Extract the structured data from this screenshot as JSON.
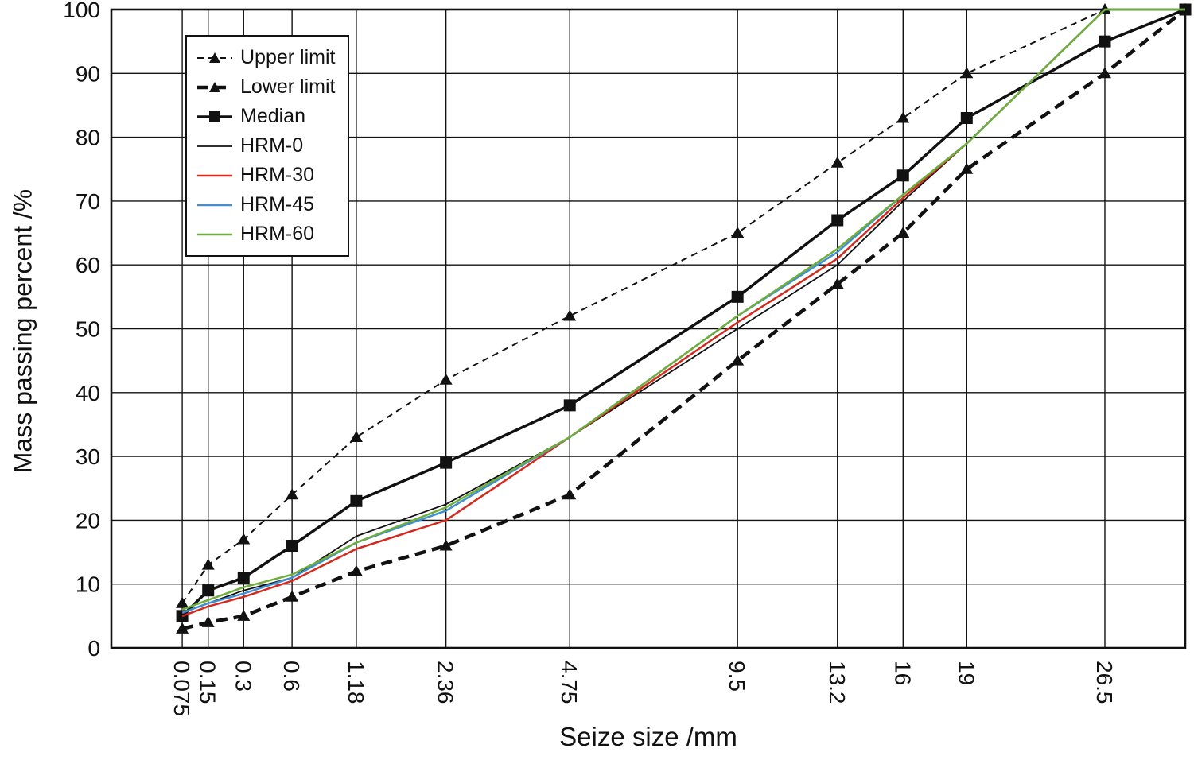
{
  "chart_data": {
    "type": "line",
    "title": "",
    "xlabel": "Seize size /mm",
    "ylabel": "Mass passing percent /%",
    "x_scale": "power-0.45",
    "grid": true,
    "legend_position": "top-left",
    "ylim": [
      0,
      100
    ],
    "y_ticks": [
      0,
      10,
      20,
      30,
      40,
      50,
      60,
      70,
      80,
      90,
      100
    ],
    "x_sizes": [
      0.075,
      0.15,
      0.3,
      0.6,
      1.18,
      2.36,
      4.75,
      9.5,
      13.2,
      16,
      19,
      26.5,
      31.5
    ],
    "x_tick_labels": [
      "0.075",
      "0.15",
      "0.3",
      "0.6",
      "1.18",
      "2.36",
      "4.75",
      "9.5",
      "13.2",
      "16",
      "19",
      "26.5",
      ""
    ],
    "series": [
      {
        "name": "Upper limit",
        "color": "#111111",
        "width": 2,
        "dash": "8,6",
        "marker": "triangle",
        "values": [
          7,
          13,
          17,
          24,
          33,
          42,
          52,
          65,
          76,
          83,
          90,
          100,
          100
        ]
      },
      {
        "name": "Lower limit",
        "color": "#111111",
        "width": 4.5,
        "dash": "14,8",
        "marker": "triangle",
        "values": [
          3,
          4,
          5,
          8,
          12,
          16,
          24,
          45,
          57,
          65,
          75,
          90,
          100
        ]
      },
      {
        "name": "Median",
        "color": "#111111",
        "width": 3.5,
        "dash": "",
        "marker": "square",
        "values": [
          5,
          9,
          11,
          16,
          23,
          29,
          38,
          55,
          67,
          74,
          83,
          95,
          100
        ]
      },
      {
        "name": "HRM-0",
        "color": "#111111",
        "width": 1.8,
        "dash": "",
        "marker": "none",
        "values": [
          5.5,
          7,
          9,
          11,
          17.5,
          22.5,
          33,
          50,
          60,
          70,
          79,
          100,
          100
        ]
      },
      {
        "name": "HRM-30",
        "color": "#d42a1d",
        "width": 2.5,
        "dash": "",
        "marker": "none",
        "values": [
          5,
          6.5,
          8,
          10.5,
          15.5,
          20,
          33,
          51,
          61,
          70.5,
          79,
          100,
          100
        ]
      },
      {
        "name": "HRM-45",
        "color": "#3f8fd2",
        "width": 2.5,
        "dash": "",
        "marker": "none",
        "values": [
          5.5,
          7,
          8.5,
          11,
          16.5,
          21.5,
          33,
          52,
          62,
          71,
          79,
          100,
          100
        ]
      },
      {
        "name": "HRM-60",
        "color": "#6fae3a",
        "width": 2.5,
        "dash": "",
        "marker": "none",
        "values": [
          6,
          7.5,
          9.5,
          11.5,
          16.5,
          22,
          33,
          52,
          62.5,
          71,
          79,
          100,
          100
        ]
      }
    ]
  }
}
